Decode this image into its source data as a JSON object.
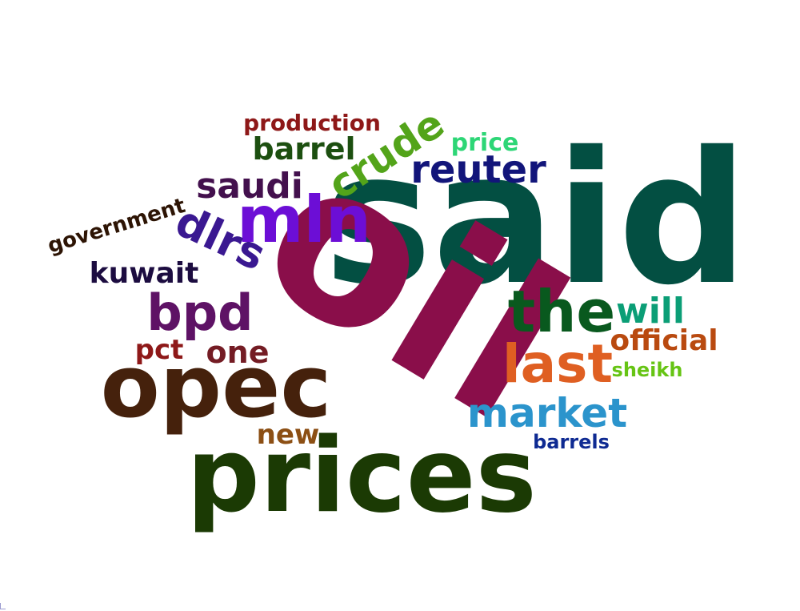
{
  "words": [
    {
      "text": "said",
      "color": "#034f42"
    },
    {
      "text": "oil",
      "color": "#8a0e4a"
    },
    {
      "text": "prices",
      "color": "#1b3a04"
    },
    {
      "text": "opec",
      "color": "#45210c"
    },
    {
      "text": "mln",
      "color": "#6c0ed6"
    },
    {
      "text": "the",
      "color": "#09591e"
    },
    {
      "text": "last",
      "color": "#df5f22"
    },
    {
      "text": "market",
      "color": "#2b94cc"
    },
    {
      "text": "bpd",
      "color": "#5e1265"
    },
    {
      "text": "dlrs",
      "color": "#3a1891"
    },
    {
      "text": "crude",
      "color": "#53a41a"
    },
    {
      "text": "reuter",
      "color": "#12157a"
    },
    {
      "text": "saudi",
      "color": "#43104d"
    },
    {
      "text": "will",
      "color": "#0b9e76"
    },
    {
      "text": "barrel",
      "color": "#1c4f10"
    },
    {
      "text": "one",
      "color": "#741c24"
    },
    {
      "text": "official",
      "color": "#b94a10"
    },
    {
      "text": "kuwait",
      "color": "#1c0c40"
    },
    {
      "text": "pct",
      "color": "#8e1818"
    },
    {
      "text": "new",
      "color": "#8c4f14"
    },
    {
      "text": "production",
      "color": "#8e1818"
    },
    {
      "text": "price",
      "color": "#2dd676"
    },
    {
      "text": "government",
      "color": "#2d1404"
    },
    {
      "text": "sheikh",
      "color": "#66c414"
    },
    {
      "text": "barrels",
      "color": "#0e2a92"
    }
  ]
}
